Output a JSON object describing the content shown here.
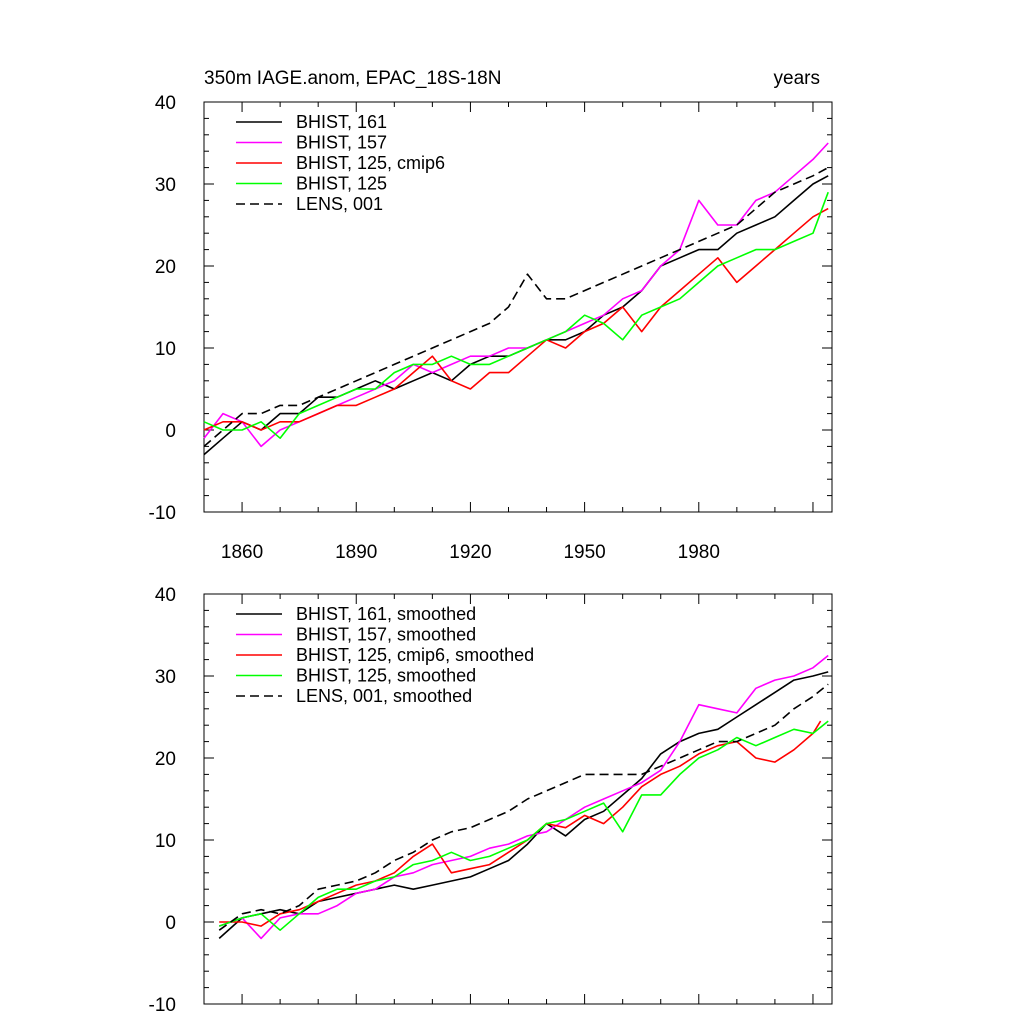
{
  "figure": {
    "title_left": "350m IAGE.anom, EPAC_18S-18N",
    "title_right": "years"
  },
  "chart_data": [
    {
      "type": "line",
      "title": "350m IAGE.anom, EPAC_18S-18N",
      "units_label": "years",
      "xlabel": "",
      "ylabel": "",
      "xlim": [
        1850,
        2015
      ],
      "ylim": [
        -10,
        40
      ],
      "x_ticks": [
        1860,
        1890,
        1920,
        1950,
        1980
      ],
      "x_tick_labels": [
        "1860",
        "1890",
        "1920",
        "1950",
        "1980"
      ],
      "y_ticks": [
        -10,
        0,
        10,
        20,
        30,
        40
      ],
      "y_tick_labels": [
        "-10",
        "0",
        "10",
        "20",
        "30",
        "40"
      ],
      "legend_position": "top-left",
      "series": [
        {
          "name": "BHIST, 161",
          "color": "#000000",
          "dash": false,
          "x": [
            1850,
            1855,
            1860,
            1865,
            1870,
            1875,
            1880,
            1885,
            1890,
            1895,
            1900,
            1905,
            1910,
            1915,
            1920,
            1925,
            1930,
            1935,
            1940,
            1945,
            1950,
            1955,
            1960,
            1965,
            1970,
            1975,
            1980,
            1985,
            1990,
            1995,
            2000,
            2005,
            2010,
            2014
          ],
          "y": [
            -3,
            -1,
            1,
            0,
            2,
            2,
            4,
            4,
            5,
            6,
            5,
            6,
            7,
            6,
            8,
            9,
            9,
            10,
            11,
            11,
            12,
            14,
            15,
            17,
            20,
            21,
            22,
            22,
            24,
            25,
            26,
            28,
            30,
            31
          ]
        },
        {
          "name": "BHIST, 157",
          "color": "#ff00ff",
          "dash": false,
          "x": [
            1850,
            1855,
            1860,
            1865,
            1870,
            1875,
            1880,
            1885,
            1890,
            1895,
            1900,
            1905,
            1910,
            1915,
            1920,
            1925,
            1930,
            1935,
            1940,
            1945,
            1950,
            1955,
            1960,
            1965,
            1970,
            1975,
            1980,
            1985,
            1990,
            1995,
            2000,
            2005,
            2010,
            2014
          ],
          "y": [
            -1,
            2,
            1,
            -2,
            0,
            1,
            2,
            3,
            4,
            5,
            6,
            8,
            7,
            8,
            9,
            9,
            10,
            10,
            11,
            12,
            13,
            14,
            16,
            17,
            20,
            22,
            28,
            25,
            25,
            28,
            29,
            31,
            33,
            35
          ]
        },
        {
          "name": "BHIST, 125, cmip6",
          "color": "#ff0000",
          "dash": false,
          "x": [
            1850,
            1855,
            1860,
            1865,
            1870,
            1875,
            1880,
            1885,
            1890,
            1895,
            1900,
            1905,
            1910,
            1915,
            1920,
            1925,
            1930,
            1935,
            1940,
            1945,
            1950,
            1955,
            1960,
            1965,
            1970,
            1975,
            1980,
            1985,
            1990,
            1995,
            2000,
            2005,
            2010,
            2014
          ],
          "y": [
            0,
            1,
            1,
            0,
            1,
            1,
            2,
            3,
            3,
            4,
            5,
            7,
            9,
            6,
            5,
            7,
            7,
            9,
            11,
            10,
            12,
            13,
            15,
            12,
            15,
            17,
            19,
            21,
            18,
            20,
            22,
            24,
            26,
            27
          ]
        },
        {
          "name": "BHIST, 125",
          "color": "#00ff00",
          "dash": false,
          "x": [
            1850,
            1855,
            1860,
            1865,
            1870,
            1875,
            1880,
            1885,
            1890,
            1895,
            1900,
            1905,
            1910,
            1915,
            1920,
            1925,
            1930,
            1935,
            1940,
            1945,
            1950,
            1955,
            1960,
            1965,
            1970,
            1975,
            1980,
            1985,
            1990,
            1995,
            2000,
            2005,
            2010,
            2014
          ],
          "y": [
            1,
            0,
            0,
            1,
            -1,
            2,
            3,
            4,
            5,
            5,
            7,
            8,
            8,
            9,
            8,
            8,
            9,
            10,
            11,
            12,
            14,
            13,
            11,
            14,
            15,
            16,
            18,
            20,
            21,
            22,
            22,
            23,
            24,
            29
          ]
        },
        {
          "name": "LENS, 001",
          "color": "#000000",
          "dash": true,
          "x": [
            1850,
            1855,
            1860,
            1865,
            1870,
            1875,
            1880,
            1885,
            1890,
            1895,
            1900,
            1905,
            1910,
            1915,
            1920,
            1925,
            1930,
            1935,
            1940,
            1945,
            1950,
            1955,
            1960,
            1965,
            1970,
            1975,
            1980,
            1985,
            1990,
            1995,
            2000,
            2005,
            2010,
            2014
          ],
          "y": [
            -2,
            0,
            2,
            2,
            3,
            3,
            4,
            5,
            6,
            7,
            8,
            9,
            10,
            11,
            12,
            13,
            15,
            19,
            16,
            16,
            17,
            18,
            19,
            20,
            21,
            22,
            23,
            24,
            25,
            27,
            29,
            30,
            31,
            32
          ]
        }
      ]
    },
    {
      "type": "line",
      "title": "",
      "xlabel": "",
      "ylabel": "",
      "xlim": [
        1850,
        2015
      ],
      "ylim": [
        -10,
        40
      ],
      "x_ticks": [
        1860,
        1890,
        1920,
        1950,
        1980
      ],
      "x_tick_labels": [],
      "y_ticks": [
        -10,
        0,
        10,
        20,
        30,
        40
      ],
      "y_tick_labels": [
        "-10",
        "0",
        "10",
        "20",
        "30",
        "40"
      ],
      "legend_position": "top-left",
      "series": [
        {
          "name": "BHIST, 161, smoothed",
          "color": "#000000",
          "dash": false,
          "x": [
            1854,
            1860,
            1865,
            1870,
            1875,
            1880,
            1885,
            1890,
            1895,
            1900,
            1905,
            1910,
            1915,
            1920,
            1925,
            1930,
            1935,
            1940,
            1945,
            1950,
            1955,
            1960,
            1965,
            1970,
            1975,
            1980,
            1985,
            1990,
            1995,
            2000,
            2005,
            2010,
            2014
          ],
          "y": [
            -2,
            0.5,
            1,
            1.5,
            1,
            2.5,
            3,
            3.5,
            4,
            4.5,
            4,
            4.5,
            5,
            5.5,
            6.5,
            7.5,
            9.5,
            12,
            10.5,
            12.5,
            13.5,
            15.5,
            17.5,
            20.5,
            22,
            23,
            23.5,
            25,
            26.5,
            28,
            29.5,
            30,
            30.5
          ]
        },
        {
          "name": "BHIST, 157, smoothed",
          "color": "#ff00ff",
          "dash": false,
          "x": [
            1854,
            1860,
            1865,
            1870,
            1875,
            1880,
            1885,
            1890,
            1895,
            1900,
            1905,
            1910,
            1915,
            1920,
            1925,
            1930,
            1935,
            1940,
            1945,
            1950,
            1955,
            1960,
            1965,
            1970,
            1975,
            1980,
            1985,
            1990,
            1995,
            2000,
            2005,
            2010,
            2014
          ],
          "y": [
            -0.5,
            0.5,
            -2,
            0.5,
            1,
            1,
            2,
            3.5,
            4,
            5.5,
            6,
            7,
            7.5,
            8,
            9,
            9.5,
            10.5,
            11,
            12.5,
            14,
            15,
            16,
            17,
            18.5,
            22,
            26.5,
            26,
            25.5,
            28.5,
            29.5,
            30,
            31,
            32.5
          ]
        },
        {
          "name": "BHIST, 125, cmip6, smoothed",
          "color": "#ff0000",
          "dash": false,
          "x": [
            1854,
            1860,
            1865,
            1870,
            1875,
            1880,
            1885,
            1890,
            1895,
            1900,
            1905,
            1910,
            1915,
            1920,
            1925,
            1930,
            1935,
            1940,
            1945,
            1950,
            1955,
            1960,
            1965,
            1970,
            1975,
            1980,
            1985,
            1990,
            1995,
            2000,
            2005,
            2010,
            2012
          ],
          "y": [
            0,
            0,
            -0.5,
            1,
            1.5,
            2.5,
            3.5,
            4.5,
            5,
            6,
            8,
            9.5,
            6,
            6.5,
            7,
            8.5,
            10,
            12,
            11.5,
            13,
            12,
            14,
            16.5,
            18,
            19,
            20.5,
            21.5,
            22,
            20,
            19.5,
            21,
            23,
            24.5
          ]
        },
        {
          "name": "BHIST, 125, smoothed",
          "color": "#00ff00",
          "dash": false,
          "x": [
            1854,
            1860,
            1865,
            1870,
            1875,
            1880,
            1885,
            1890,
            1895,
            1900,
            1905,
            1910,
            1915,
            1920,
            1925,
            1930,
            1935,
            1940,
            1945,
            1950,
            1955,
            1960,
            1965,
            1970,
            1975,
            1980,
            1985,
            1990,
            1995,
            2000,
            2005,
            2010,
            2014
          ],
          "y": [
            -0.5,
            0.5,
            1,
            -1,
            1,
            3,
            4,
            4,
            5,
            5.5,
            7,
            7.5,
            8.5,
            7.5,
            8,
            9,
            10,
            12,
            12.5,
            13.5,
            14.5,
            11,
            15.5,
            15.5,
            18,
            20,
            21,
            22.5,
            21.5,
            22.5,
            23.5,
            23,
            24.5
          ]
        },
        {
          "name": "LENS, 001, smoothed",
          "color": "#000000",
          "dash": true,
          "x": [
            1854,
            1860,
            1865,
            1870,
            1875,
            1880,
            1885,
            1890,
            1895,
            1900,
            1905,
            1910,
            1915,
            1920,
            1925,
            1930,
            1935,
            1940,
            1945,
            1950,
            1955,
            1960,
            1965,
            1970,
            1975,
            1980,
            1985,
            1990,
            1995,
            2000,
            2005,
            2010,
            2014
          ],
          "y": [
            -1,
            1,
            1.5,
            1,
            2,
            4,
            4.5,
            5,
            6,
            7.5,
            8.5,
            10,
            11,
            11.5,
            12.5,
            13.5,
            15,
            16,
            17,
            18,
            18,
            18,
            18,
            19,
            20,
            21,
            22,
            22,
            23,
            24,
            26,
            27.5,
            29
          ]
        }
      ]
    }
  ]
}
